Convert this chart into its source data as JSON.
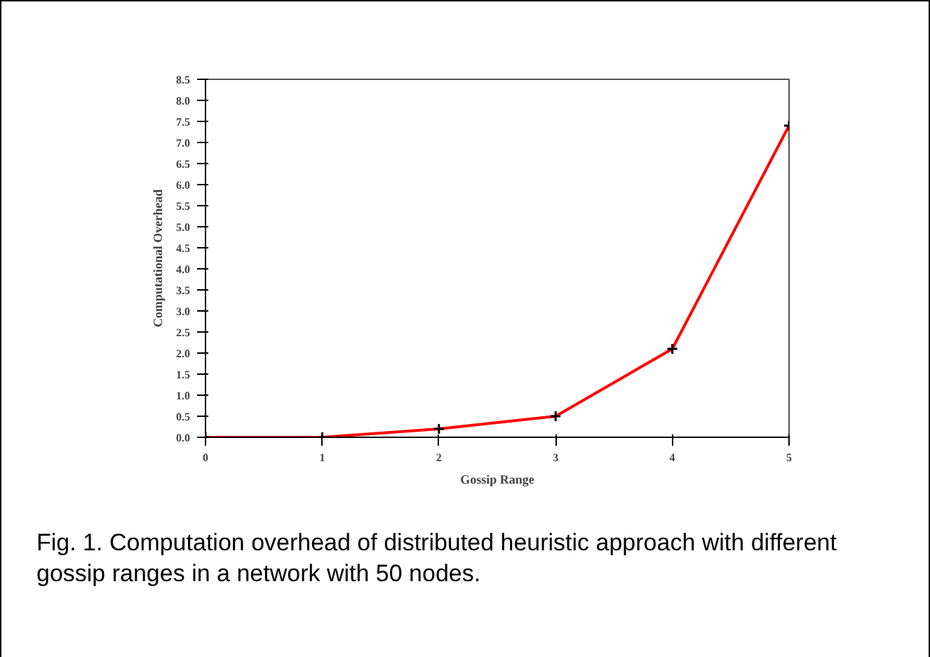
{
  "chart_data": {
    "type": "line",
    "xlabel": "Gossip Range",
    "ylabel": "Computational Overhead",
    "x": [
      0,
      1,
      2,
      3,
      4,
      5
    ],
    "series": [
      {
        "color": "#ff0000",
        "values": [
          0,
          0,
          0.2,
          0.5,
          2.1,
          7.4
        ]
      }
    ],
    "marker": "cross",
    "line_style": "solid",
    "xlim": [
      0,
      5
    ],
    "xticks": [
      0,
      1,
      2,
      3,
      4,
      5
    ],
    "ylim": [
      0,
      8.5
    ],
    "yticks": [
      {
        "value": 0,
        "label": "0.0"
      },
      0.5,
      {
        "value": 1,
        "label": "1.0"
      },
      1.5,
      {
        "value": 2,
        "label": "2.0"
      },
      2.5,
      {
        "value": 3,
        "label": "3.0"
      },
      3.5,
      {
        "value": 4,
        "label": "4.0"
      },
      4.5,
      {
        "value": 5,
        "label": "5.0"
      },
      5.5,
      {
        "value": 6,
        "label": "6.0"
      },
      6.5,
      {
        "value": 7,
        "label": "7.0"
      },
      7.5,
      {
        "value": 8,
        "label": "8.0"
      },
      8.5
    ],
    "annotations": [
      "Fig. 1. Computation overhead of distributed heuristic approach with different gossip ranges in a network with 50 nodes."
    ]
  }
}
